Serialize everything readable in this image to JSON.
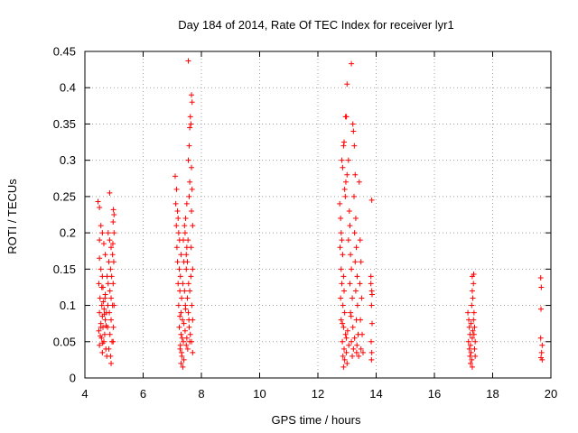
{
  "chart_data": {
    "type": "scatter",
    "title": "Day 184 of 2014, Rate Of TEC Index for receiver lyr1",
    "xlabel": "GPS time / hours",
    "ylabel": "ROTI / TECUs",
    "xlim": [
      4,
      20
    ],
    "ylim": [
      0,
      0.45
    ],
    "xticks": [
      4,
      6,
      8,
      10,
      12,
      14,
      16,
      18,
      20
    ],
    "xtick_labels": [
      "4",
      "6",
      "8",
      "10",
      "12",
      "14",
      "16",
      "18",
      "20"
    ],
    "yticks": [
      0,
      0.05,
      0.1,
      0.15,
      0.2,
      0.25,
      0.3,
      0.35,
      0.4,
      0.45
    ],
    "ytick_labels": [
      "0",
      "0.05",
      "0.1",
      "0.15",
      "0.2",
      "0.25",
      "0.3",
      "0.35",
      "0.4",
      "0.45"
    ],
    "grid": true,
    "marker": "+",
    "color": "#ff0000",
    "series": [
      {
        "name": "ROTI",
        "points": [
          [
            4.45,
            0.243
          ],
          [
            4.5,
            0.235
          ],
          [
            4.55,
            0.21
          ],
          [
            4.6,
            0.2
          ],
          [
            4.5,
            0.19
          ],
          [
            4.65,
            0.185
          ],
          [
            4.7,
            0.17
          ],
          [
            4.5,
            0.165
          ],
          [
            4.55,
            0.15
          ],
          [
            4.6,
            0.14
          ],
          [
            4.48,
            0.13
          ],
          [
            4.62,
            0.125
          ],
          [
            4.7,
            0.115
          ],
          [
            4.52,
            0.11
          ],
          [
            4.58,
            0.1
          ],
          [
            4.66,
            0.095
          ],
          [
            4.5,
            0.09
          ],
          [
            4.6,
            0.085
          ],
          [
            4.7,
            0.08
          ],
          [
            4.55,
            0.075
          ],
          [
            4.62,
            0.07
          ],
          [
            4.48,
            0.065
          ],
          [
            4.68,
            0.06
          ],
          [
            4.57,
            0.055
          ],
          [
            4.65,
            0.05
          ],
          [
            4.5,
            0.045
          ],
          [
            4.72,
            0.04
          ],
          [
            4.6,
            0.035
          ],
          [
            4.75,
            0.03
          ],
          [
            4.55,
            0.07
          ],
          [
            4.8,
            0.2
          ],
          [
            4.85,
            0.19
          ],
          [
            4.9,
            0.18
          ],
          [
            4.95,
            0.17
          ],
          [
            4.82,
            0.16
          ],
          [
            4.88,
            0.15
          ],
          [
            4.92,
            0.14
          ],
          [
            4.8,
            0.13
          ],
          [
            4.86,
            0.12
          ],
          [
            4.9,
            0.11
          ],
          [
            4.95,
            0.1
          ],
          [
            4.84,
            0.09
          ],
          [
            4.9,
            0.08
          ],
          [
            4.78,
            0.07
          ],
          [
            4.86,
            0.06
          ],
          [
            4.93,
            0.05
          ],
          [
            4.82,
            0.04
          ],
          [
            4.88,
            0.03
          ],
          [
            4.9,
            0.02
          ],
          [
            4.85,
            0.255
          ],
          [
            4.98,
            0.232
          ],
          [
            5.0,
            0.225
          ],
          [
            4.97,
            0.215
          ],
          [
            5.0,
            0.2
          ],
          [
            4.96,
            0.185
          ],
          [
            4.99,
            0.16
          ],
          [
            4.97,
            0.13
          ],
          [
            5.0,
            0.1
          ],
          [
            4.98,
            0.07
          ],
          [
            4.97,
            0.05
          ],
          [
            4.58,
            0.125
          ],
          [
            4.63,
            0.105
          ],
          [
            4.67,
            0.088
          ],
          [
            4.73,
            0.072
          ],
          [
            4.76,
            0.14
          ],
          [
            4.79,
            0.1
          ],
          [
            4.53,
            0.058
          ],
          [
            4.61,
            0.048
          ],
          [
            4.69,
            0.11
          ],
          [
            4.74,
            0.09
          ],
          [
            7.1,
            0.278
          ],
          [
            7.15,
            0.26
          ],
          [
            7.12,
            0.24
          ],
          [
            7.18,
            0.23
          ],
          [
            7.2,
            0.22
          ],
          [
            7.14,
            0.21
          ],
          [
            7.22,
            0.2
          ],
          [
            7.25,
            0.19
          ],
          [
            7.16,
            0.18
          ],
          [
            7.3,
            0.17
          ],
          [
            7.18,
            0.16
          ],
          [
            7.24,
            0.15
          ],
          [
            7.28,
            0.14
          ],
          [
            7.2,
            0.13
          ],
          [
            7.26,
            0.12
          ],
          [
            7.32,
            0.11
          ],
          [
            7.22,
            0.1
          ],
          [
            7.3,
            0.09
          ],
          [
            7.35,
            0.08
          ],
          [
            7.24,
            0.07
          ],
          [
            7.3,
            0.06
          ],
          [
            7.38,
            0.05
          ],
          [
            7.27,
            0.04
          ],
          [
            7.33,
            0.03
          ],
          [
            7.4,
            0.025
          ],
          [
            7.3,
            0.02
          ],
          [
            7.36,
            0.015
          ],
          [
            7.42,
            0.12
          ],
          [
            7.45,
            0.1
          ],
          [
            7.48,
            0.15
          ],
          [
            7.5,
            0.18
          ],
          [
            7.52,
            0.16
          ],
          [
            7.44,
            0.2
          ],
          [
            7.46,
            0.22
          ],
          [
            7.5,
            0.24
          ],
          [
            7.42,
            0.21
          ],
          [
            7.54,
            0.19
          ],
          [
            7.48,
            0.17
          ],
          [
            7.56,
            0.13
          ],
          [
            7.52,
            0.11
          ],
          [
            7.55,
            0.09
          ],
          [
            7.58,
            0.07
          ],
          [
            7.6,
            0.05
          ],
          [
            7.53,
            0.04
          ],
          [
            7.62,
            0.06
          ],
          [
            7.57,
            0.08
          ],
          [
            7.6,
            0.12
          ],
          [
            7.64,
            0.14
          ],
          [
            7.58,
            0.25
          ],
          [
            7.6,
            0.27
          ],
          [
            7.55,
            0.3
          ],
          [
            7.58,
            0.32
          ],
          [
            7.6,
            0.345
          ],
          [
            7.62,
            0.36
          ],
          [
            7.55,
            0.437
          ],
          [
            7.66,
            0.39
          ],
          [
            7.68,
            0.38
          ],
          [
            7.64,
            0.35
          ],
          [
            7.66,
            0.29
          ],
          [
            7.68,
            0.26
          ],
          [
            7.66,
            0.23
          ],
          [
            7.7,
            0.21
          ],
          [
            7.65,
            0.18
          ],
          [
            7.7,
            0.15
          ],
          [
            7.67,
            0.1
          ],
          [
            7.7,
            0.08
          ],
          [
            7.66,
            0.05
          ],
          [
            7.7,
            0.035
          ],
          [
            7.34,
            0.055
          ],
          [
            7.28,
            0.045
          ],
          [
            7.36,
            0.13
          ],
          [
            7.4,
            0.16
          ],
          [
            7.38,
            0.19
          ],
          [
            7.26,
            0.085
          ],
          [
            7.44,
            0.065
          ],
          [
            7.46,
            0.095
          ],
          [
            7.48,
            0.045
          ],
          [
            7.32,
            0.035
          ],
          [
            7.4,
            0.075
          ],
          [
            7.5,
            0.055
          ],
          [
            12.75,
            0.24
          ],
          [
            12.78,
            0.22
          ],
          [
            12.8,
            0.2
          ],
          [
            12.82,
            0.19
          ],
          [
            12.76,
            0.18
          ],
          [
            12.85,
            0.17
          ],
          [
            12.8,
            0.15
          ],
          [
            12.88,
            0.14
          ],
          [
            12.82,
            0.13
          ],
          [
            12.9,
            0.12
          ],
          [
            12.78,
            0.11
          ],
          [
            12.86,
            0.1
          ],
          [
            12.92,
            0.09
          ],
          [
            12.8,
            0.08
          ],
          [
            12.88,
            0.07
          ],
          [
            12.95,
            0.06
          ],
          [
            12.84,
            0.05
          ],
          [
            12.9,
            0.04
          ],
          [
            12.98,
            0.035
          ],
          [
            12.86,
            0.03
          ],
          [
            12.92,
            0.025
          ],
          [
            13.0,
            0.02
          ],
          [
            12.88,
            0.015
          ],
          [
            12.82,
            0.3
          ],
          [
            12.85,
            0.29
          ],
          [
            12.88,
            0.32
          ],
          [
            12.9,
            0.325
          ],
          [
            12.95,
            0.36
          ],
          [
            12.98,
            0.36
          ],
          [
            12.96,
            0.27
          ],
          [
            12.92,
            0.26
          ],
          [
            12.94,
            0.25
          ],
          [
            13.0,
            0.405
          ],
          [
            13.05,
            0.3
          ],
          [
            13.0,
            0.28
          ],
          [
            13.08,
            0.23
          ],
          [
            13.1,
            0.21
          ],
          [
            13.05,
            0.19
          ],
          [
            13.12,
            0.17
          ],
          [
            13.15,
            0.15
          ],
          [
            13.1,
            0.13
          ],
          [
            13.18,
            0.11
          ],
          [
            13.12,
            0.09
          ],
          [
            13.2,
            0.07
          ],
          [
            13.15,
            0.05
          ],
          [
            13.22,
            0.04
          ],
          [
            13.18,
            0.03
          ],
          [
            13.15,
            0.433
          ],
          [
            13.2,
            0.35
          ],
          [
            13.22,
            0.34
          ],
          [
            13.25,
            0.32
          ],
          [
            13.28,
            0.28
          ],
          [
            13.24,
            0.25
          ],
          [
            13.3,
            0.22
          ],
          [
            13.26,
            0.2
          ],
          [
            13.32,
            0.18
          ],
          [
            13.28,
            0.16
          ],
          [
            13.35,
            0.14
          ],
          [
            13.3,
            0.12
          ],
          [
            13.36,
            0.1
          ],
          [
            13.32,
            0.08
          ],
          [
            13.38,
            0.06
          ],
          [
            13.34,
            0.045
          ],
          [
            13.4,
            0.03
          ],
          [
            13.42,
            0.27
          ],
          [
            13.45,
            0.19
          ],
          [
            13.48,
            0.16
          ],
          [
            13.44,
            0.13
          ],
          [
            13.5,
            0.11
          ],
          [
            13.46,
            0.08
          ],
          [
            13.52,
            0.06
          ],
          [
            13.48,
            0.04
          ],
          [
            13.55,
            0.035
          ],
          [
            13.85,
            0.245
          ],
          [
            13.82,
            0.14
          ],
          [
            13.85,
            0.12
          ],
          [
            13.84,
            0.1
          ],
          [
            13.86,
            0.075
          ],
          [
            13.83,
            0.05
          ],
          [
            13.85,
            0.035
          ],
          [
            13.84,
            0.025
          ],
          [
            13.82,
            0.13
          ],
          [
            13.86,
            0.115
          ],
          [
            12.98,
            0.055
          ],
          [
            13.02,
            0.065
          ],
          [
            13.06,
            0.045
          ],
          [
            13.26,
            0.055
          ],
          [
            13.33,
            0.035
          ],
          [
            12.84,
            0.075
          ],
          [
            13.14,
            0.085
          ],
          [
            17.15,
            0.09
          ],
          [
            17.18,
            0.08
          ],
          [
            17.2,
            0.07
          ],
          [
            17.22,
            0.06
          ],
          [
            17.17,
            0.05
          ],
          [
            17.24,
            0.045
          ],
          [
            17.2,
            0.04
          ],
          [
            17.26,
            0.035
          ],
          [
            17.22,
            0.03
          ],
          [
            17.28,
            0.025
          ],
          [
            17.24,
            0.02
          ],
          [
            17.3,
            0.015
          ],
          [
            17.28,
            0.1
          ],
          [
            17.32,
            0.11
          ],
          [
            17.3,
            0.12
          ],
          [
            17.34,
            0.13
          ],
          [
            17.3,
            0.14
          ],
          [
            17.35,
            0.143
          ],
          [
            17.36,
            0.09
          ],
          [
            17.34,
            0.08
          ],
          [
            17.38,
            0.07
          ],
          [
            17.36,
            0.06
          ],
          [
            17.4,
            0.05
          ],
          [
            17.38,
            0.04
          ],
          [
            17.4,
            0.03
          ],
          [
            17.32,
            0.065
          ],
          [
            17.26,
            0.075
          ],
          [
            17.3,
            0.055
          ],
          [
            19.65,
            0.138
          ],
          [
            19.67,
            0.125
          ],
          [
            19.66,
            0.095
          ],
          [
            19.65,
            0.055
          ],
          [
            19.7,
            0.045
          ],
          [
            19.68,
            0.035
          ],
          [
            19.66,
            0.028
          ],
          [
            19.7,
            0.025
          ]
        ]
      }
    ]
  }
}
